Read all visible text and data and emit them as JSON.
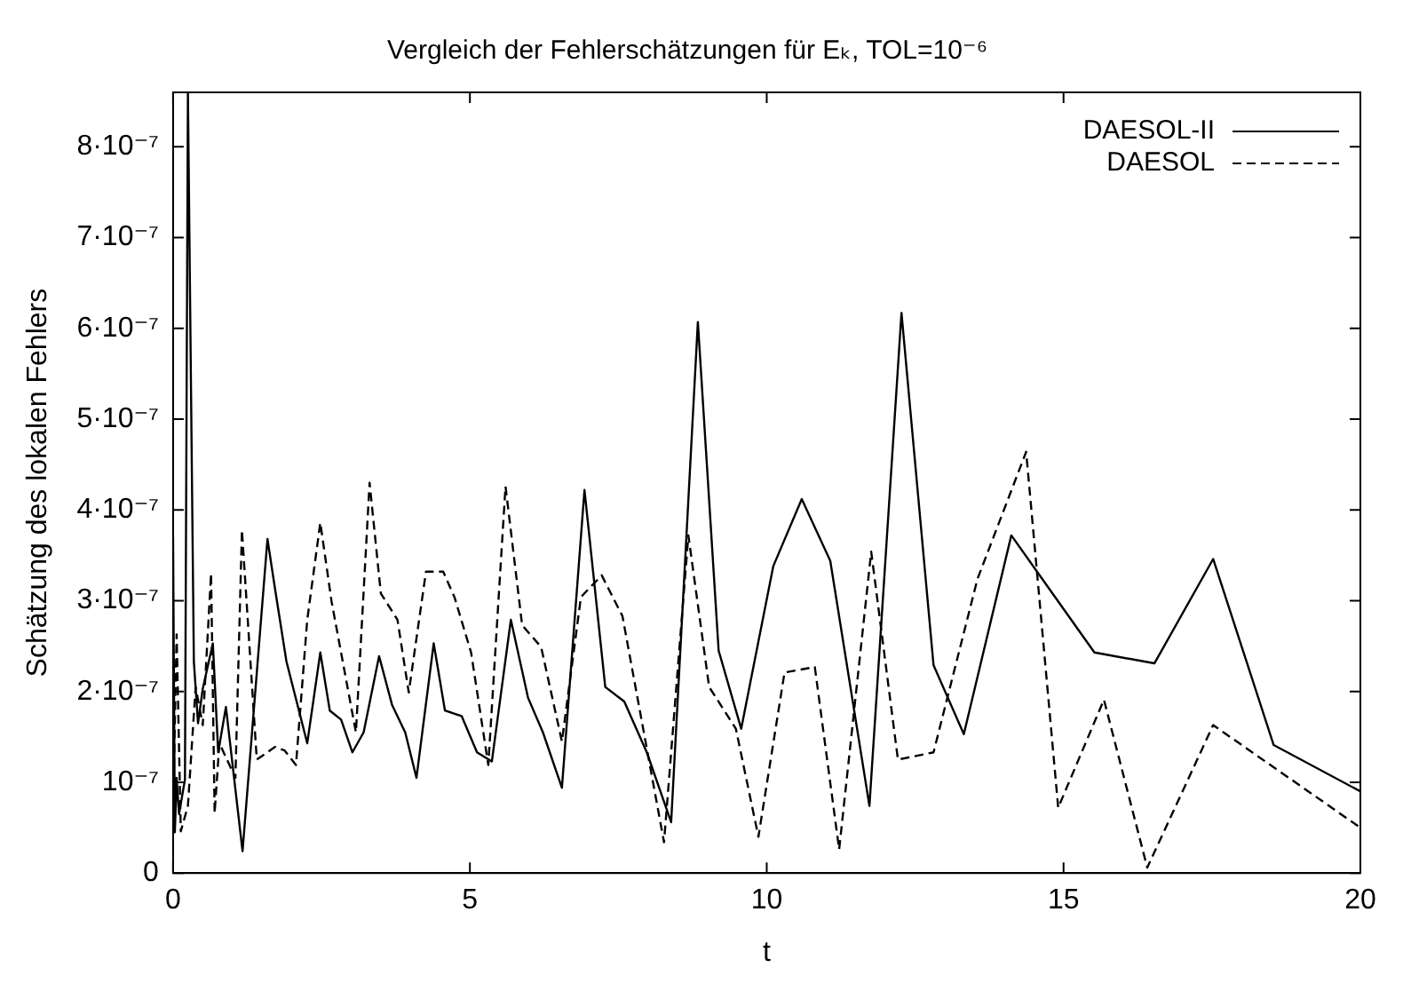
{
  "chart_data": {
    "type": "line",
    "title": "Vergleich der Fehlerschätzungen für Eₖ, TOL=10⁻⁶",
    "xlabel": "t",
    "ylabel": "Schätzung des lokalen Fehlers",
    "xlim": [
      0,
      20
    ],
    "xticks": [
      0,
      5,
      10,
      15,
      20
    ],
    "ylim": [
      0,
      8.6e-07
    ],
    "yticks": [
      0,
      {
        "value": 1e-07,
        "label": "10⁻⁷"
      },
      {
        "value": 2e-07,
        "label": "2·10⁻⁷"
      },
      {
        "value": 3e-07,
        "label": "3·10⁻⁷"
      },
      {
        "value": 4e-07,
        "label": "4·10⁻⁷"
      },
      {
        "value": 5e-07,
        "label": "5·10⁻⁷"
      },
      {
        "value": 6e-07,
        "label": "6·10⁻⁷"
      },
      {
        "value": 7e-07,
        "label": "7·10⁻⁷"
      },
      {
        "value": 8e-07,
        "label": "8·10⁻⁷"
      }
    ],
    "grid": false,
    "legend": "top right",
    "marker": "none",
    "series": [
      {
        "name": "DAESOL-II",
        "color": "#000000",
        "line_style": "solid",
        "x": [
          0,
          0.03,
          0.06,
          0.1,
          0.2,
          0.25,
          0.35,
          0.42,
          0.5,
          0.67,
          0.76,
          0.89,
          1.17,
          1.59,
          1.72,
          1.91,
          2.26,
          2.48,
          2.64,
          2.83,
          3.02,
          3.21,
          3.47,
          3.69,
          3.91,
          4.1,
          4.39,
          4.58,
          4.86,
          5.12,
          5.37,
          5.69,
          5.98,
          6.23,
          6.55,
          6.93,
          7.28,
          7.6,
          7.98,
          8.39,
          8.84,
          9.19,
          9.57,
          10.11,
          10.59,
          11.07,
          11.73,
          12.27,
          12.81,
          13.32,
          14.12,
          14.75,
          15.52,
          16.53,
          17.52,
          18.54,
          20
        ],
        "values": [
          3.7e-07,
          4.5e-08,
          1.05e-07,
          6.5e-08,
          1.03e-07,
          8.6e-07,
          2.33e-07,
          1.65e-07,
          2.03e-07,
          2.53e-07,
          1.33e-07,
          1.83e-07,
          2.4e-08,
          3.68e-07,
          3.12e-07,
          2.33e-07,
          1.43e-07,
          2.43e-07,
          1.79e-07,
          1.69e-07,
          1.33e-07,
          1.55e-07,
          2.39e-07,
          1.85e-07,
          1.55e-07,
          1.05e-07,
          2.53e-07,
          1.79e-07,
          1.73e-07,
          1.33e-07,
          1.23e-07,
          2.79e-07,
          1.93e-07,
          1.55e-07,
          9.4e-08,
          4.22e-07,
          2.05e-07,
          1.89e-07,
          1.33e-07,
          5.6e-08,
          6.07e-07,
          2.45e-07,
          1.59e-07,
          3.38e-07,
          4.12e-07,
          3.44e-07,
          7.4e-08,
          6.17e-07,
          2.29e-07,
          1.53e-07,
          3.72e-07,
          3.14e-07,
          2.43e-07,
          2.31e-07,
          3.46e-07,
          1.41e-07,
          9e-08
        ]
      },
      {
        "name": "DAESOL",
        "color": "#000000",
        "line_style": "dashed",
        "x": [
          0,
          0.06,
          0.13,
          0.25,
          0.38,
          0.5,
          0.64,
          0.7,
          0.78,
          1.05,
          1.16,
          1.41,
          1.72,
          1.88,
          2.07,
          2.26,
          2.48,
          2.67,
          3.08,
          3.31,
          3.5,
          3.78,
          3.97,
          4.26,
          4.55,
          4.74,
          5.02,
          5.31,
          5.6,
          5.88,
          6.2,
          6.55,
          6.87,
          7.22,
          7.57,
          8.27,
          8.68,
          9.03,
          9.48,
          9.86,
          10.3,
          10.81,
          11.22,
          11.76,
          12.21,
          12.81,
          13.55,
          14.37,
          14.91,
          15.68,
          16.41,
          17.52,
          20
        ],
        "values": [
          7e-08,
          2.63e-07,
          4.6e-08,
          7.4e-08,
          2.05e-07,
          1.63e-07,
          3.3e-07,
          6.6e-08,
          1.43e-07,
          1.05e-07,
          3.78e-07,
          1.25e-07,
          1.39e-07,
          1.35e-07,
          1.19e-07,
          2.79e-07,
          3.86e-07,
          2.99e-07,
          1.55e-07,
          4.3e-07,
          3.08e-07,
          2.79e-07,
          1.99e-07,
          3.32e-07,
          3.32e-07,
          3.04e-07,
          2.43e-07,
          1.19e-07,
          4.26e-07,
          2.73e-07,
          2.49e-07,
          1.45e-07,
          3.04e-07,
          3.28e-07,
          2.83e-07,
          3.4e-08,
          3.72e-07,
          2.05e-07,
          1.59e-07,
          4e-08,
          2.21e-07,
          2.27e-07,
          2.6e-08,
          3.54e-07,
          1.25e-07,
          1.33e-07,
          3.24e-07,
          4.64e-07,
          7.2e-08,
          1.91e-07,
          6e-09,
          1.63e-07,
          5e-08
        ]
      }
    ]
  }
}
